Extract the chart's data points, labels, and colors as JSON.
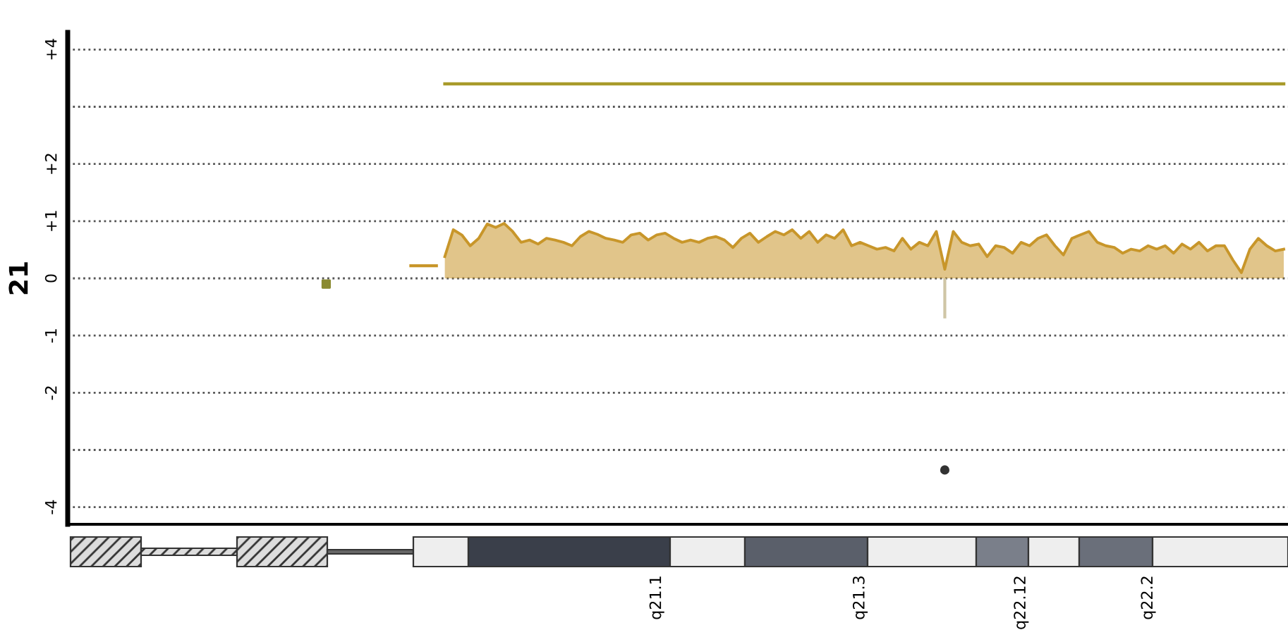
{
  "chart_data": {
    "type": "line",
    "ylabel": "21",
    "categories": [
      null,
      null,
      null,
      null,
      null,
      null,
      null,
      null,
      null,
      null,
      null,
      null,
      null,
      null,
      null,
      null,
      null,
      null,
      null,
      null,
      null,
      null,
      null,
      null,
      null,
      null,
      null,
      null,
      null,
      null,
      null,
      null,
      null,
      null,
      null,
      null,
      null,
      null,
      null,
      null,
      null,
      null,
      null,
      null,
      null,
      null,
      null,
      null,
      null,
      null,
      null,
      null,
      null,
      null,
      null,
      null,
      null,
      null,
      null,
      null,
      null,
      null,
      null,
      null,
      null,
      null,
      null,
      null,
      null,
      "q21.1",
      null,
      null,
      null,
      null,
      null,
      null,
      null,
      null,
      null,
      null,
      null,
      null,
      null,
      null,
      null,
      null,
      null,
      null,
      null,
      null,
      null,
      null,
      null,
      "q21.3",
      null,
      null,
      null,
      null,
      null,
      null,
      null,
      null,
      null,
      null,
      null,
      null,
      null,
      null,
      null,
      null,
      null,
      null,
      "q22.12",
      null,
      null,
      null,
      null,
      null,
      null,
      null,
      null,
      null,
      null,
      null,
      null,
      null,
      null,
      "q22.2",
      null,
      null,
      null,
      null,
      null,
      null,
      null,
      null,
      null,
      null,
      null,
      null,
      null,
      null,
      null,
      null
    ],
    "series": [
      {
        "color": "#c8962a",
        "values": [
          null,
          null,
          null,
          null,
          null,
          null,
          null,
          null,
          null,
          null,
          null,
          null,
          null,
          null,
          null,
          null,
          null,
          null,
          null,
          null,
          null,
          null,
          null,
          null,
          null,
          null,
          null,
          null,
          null,
          null,
          null,
          null,
          null,
          null,
          null,
          null,
          null,
          null,
          null,
          null,
          0.22,
          0.22,
          0.22,
          0.22,
          null,
          null,
          null,
          null,
          null,
          null,
          null,
          null,
          null,
          null,
          null,
          null,
          null,
          null,
          null,
          null,
          null,
          null,
          null,
          null,
          null,
          null,
          null,
          null,
          null,
          null,
          null,
          null,
          null,
          null,
          null,
          null,
          null,
          null,
          null,
          null,
          null,
          null,
          null,
          null,
          null,
          null,
          null,
          null,
          null,
          null,
          null,
          null,
          null,
          null,
          null,
          null,
          null,
          null,
          null,
          null,
          null,
          null,
          null,
          null,
          null,
          null,
          null,
          null,
          null,
          null,
          null,
          null,
          null,
          null,
          null,
          null,
          null,
          null,
          null,
          null,
          null,
          null,
          null,
          null,
          null,
          null,
          null,
          null,
          null,
          null,
          null,
          null,
          null,
          null,
          null,
          null,
          null,
          null,
          null,
          null,
          null,
          null,
          null,
          null
        ]
      },
      {
        "type": "area",
        "color": "#c8962a",
        "values": [
          null,
          null,
          null,
          null,
          null,
          null,
          null,
          null,
          null,
          null,
          null,
          null,
          null,
          null,
          null,
          null,
          null,
          null,
          null,
          null,
          null,
          null,
          null,
          null,
          null,
          null,
          null,
          null,
          null,
          null,
          null,
          null,
          null,
          null,
          null,
          null,
          null,
          null,
          null,
          null,
          null,
          null,
          null,
          null,
          0.38,
          0.85,
          0.76,
          0.57,
          0.7,
          0.95,
          0.89,
          0.96,
          0.82,
          0.63,
          0.67,
          0.6,
          0.7,
          0.67,
          0.63,
          0.57,
          0.73,
          0.82,
          0.77,
          0.7,
          0.67,
          0.63,
          0.76,
          0.79,
          0.67,
          0.76,
          0.79,
          0.7,
          0.63,
          0.67,
          0.63,
          0.7,
          0.73,
          0.67,
          0.54,
          0.7,
          0.79,
          0.63,
          0.73,
          0.82,
          0.76,
          0.85,
          0.7,
          0.82,
          0.63,
          0.76,
          0.7,
          0.85,
          0.57,
          0.63,
          0.57,
          0.51,
          0.54,
          0.48,
          0.7,
          0.51,
          0.63,
          0.57,
          0.82,
          0.16,
          0.82,
          0.63,
          0.57,
          0.6,
          0.38,
          0.57,
          0.54,
          0.44,
          0.63,
          0.57,
          0.7,
          0.76,
          0.57,
          0.41,
          0.7,
          0.76,
          0.82,
          0.63,
          0.57,
          0.54,
          0.44,
          0.51,
          0.48,
          0.57,
          0.51,
          0.57,
          0.44,
          0.6,
          0.51,
          0.63,
          0.48,
          0.57,
          0.57,
          0.32,
          0.1,
          0.51,
          0.7,
          0.57,
          0.48,
          0.51
        ]
      },
      {
        "type": "line",
        "color": "#a89a2a",
        "values": [
          null,
          null,
          null,
          null,
          null,
          null,
          null,
          null,
          null,
          null,
          null,
          null,
          null,
          null,
          null,
          null,
          null,
          null,
          null,
          null,
          null,
          null,
          null,
          null,
          null,
          null,
          null,
          null,
          null,
          null,
          null,
          null,
          null,
          null,
          null,
          null,
          null,
          null,
          null,
          null,
          null,
          null,
          null,
          null,
          3.4,
          3.4,
          3.4,
          3.4,
          3.4,
          3.4,
          3.4,
          3.4,
          3.4,
          3.4,
          3.4,
          3.4,
          3.4,
          3.4,
          3.4,
          3.4,
          3.4,
          3.4,
          3.4,
          3.4,
          3.4,
          3.4,
          3.4,
          3.4,
          3.4,
          3.4,
          3.4,
          3.4,
          3.4,
          3.4,
          3.4,
          3.4,
          3.4,
          3.4,
          3.4,
          3.4,
          3.4,
          3.4,
          3.4,
          3.4,
          3.4,
          3.4,
          3.4,
          3.4,
          3.4,
          3.4,
          3.4,
          3.4,
          3.4,
          3.4,
          3.4,
          3.4,
          3.4,
          3.4,
          3.4,
          3.4,
          3.4,
          3.4,
          3.4,
          3.4,
          3.4,
          3.4,
          3.4,
          3.4,
          3.4,
          3.4,
          3.4,
          3.4,
          3.4,
          3.4,
          3.4,
          3.4,
          3.4,
          3.4,
          3.4,
          3.4,
          3.4,
          3.4,
          3.4,
          3.4,
          3.4,
          3.4,
          3.4,
          3.4,
          3.4,
          3.4,
          3.4,
          3.4,
          3.4,
          3.4,
          3.4,
          3.4,
          3.4,
          3.4,
          3.4,
          3.4,
          3.4,
          3.4,
          3.4,
          3.4
        ]
      },
      {
        "type": "scatter",
        "color": "#8a8a30",
        "marker": "square",
        "values": [
          null,
          null,
          null,
          null,
          null,
          null,
          null,
          null,
          null,
          null,
          null,
          null,
          null,
          null,
          null,
          null,
          null,
          null,
          null,
          null,
          null,
          null,
          null,
          null,
          null,
          null,
          null,
          null,
          null,
          null,
          -0.1,
          null,
          null,
          null,
          null,
          null,
          null,
          null,
          null,
          null,
          null,
          null,
          null,
          null,
          null,
          null,
          null,
          null,
          null,
          null,
          null,
          null,
          null,
          null,
          null,
          null,
          null,
          null,
          null,
          null,
          null,
          null,
          null,
          null,
          null,
          null,
          null,
          null,
          null,
          null,
          null,
          null,
          null,
          null,
          null,
          null,
          null,
          null,
          null,
          null,
          null,
          null,
          null,
          null,
          null,
          null,
          null,
          null,
          null,
          null,
          null,
          null,
          null,
          null,
          null,
          null,
          null,
          null,
          null,
          null,
          null,
          null,
          null,
          null,
          null,
          null,
          null,
          null,
          null,
          null,
          null,
          null,
          null,
          null,
          null,
          null,
          null,
          null,
          null,
          null,
          null,
          null,
          null,
          null,
          null,
          null,
          null,
          null,
          null,
          null,
          null,
          null,
          null,
          null,
          null,
          null,
          null,
          null,
          null,
          null,
          null,
          null,
          null,
          null
        ]
      },
      {
        "type": "bar",
        "color": "#cfc6a6",
        "values": [
          null,
          null,
          null,
          null,
          null,
          null,
          null,
          null,
          null,
          null,
          null,
          null,
          null,
          null,
          null,
          null,
          null,
          null,
          null,
          null,
          null,
          null,
          null,
          null,
          null,
          null,
          null,
          null,
          null,
          null,
          null,
          null,
          null,
          null,
          null,
          null,
          null,
          null,
          null,
          null,
          null,
          null,
          null,
          null,
          null,
          null,
          null,
          null,
          null,
          null,
          null,
          null,
          null,
          null,
          null,
          null,
          null,
          null,
          null,
          null,
          null,
          null,
          null,
          null,
          null,
          null,
          null,
          null,
          null,
          null,
          null,
          null,
          null,
          null,
          null,
          null,
          null,
          null,
          null,
          null,
          null,
          null,
          null,
          null,
          null,
          null,
          null,
          null,
          null,
          null,
          null,
          null,
          null,
          null,
          null,
          null,
          null,
          null,
          null,
          null,
          null,
          null,
          null,
          -0.7,
          null,
          null,
          null,
          null,
          null,
          null,
          null,
          null,
          null,
          null,
          null,
          null,
          null,
          null,
          null,
          null,
          null,
          null,
          null,
          null,
          null,
          null,
          null,
          null,
          null,
          null,
          null,
          null,
          null,
          null,
          null,
          null,
          null,
          null,
          null,
          null,
          null,
          null,
          null,
          null
        ]
      },
      {
        "type": "scatter",
        "color": "#333333",
        "marker": "circle",
        "values": [
          null,
          null,
          null,
          null,
          null,
          null,
          null,
          null,
          null,
          null,
          null,
          null,
          null,
          null,
          null,
          null,
          null,
          null,
          null,
          null,
          null,
          null,
          null,
          null,
          null,
          null,
          null,
          null,
          null,
          null,
          null,
          null,
          null,
          null,
          null,
          null,
          null,
          null,
          null,
          null,
          null,
          null,
          null,
          null,
          null,
          null,
          null,
          null,
          null,
          null,
          null,
          null,
          null,
          null,
          null,
          null,
          null,
          null,
          null,
          null,
          null,
          null,
          null,
          null,
          null,
          null,
          null,
          null,
          null,
          null,
          null,
          null,
          null,
          null,
          null,
          null,
          null,
          null,
          null,
          null,
          null,
          null,
          null,
          null,
          null,
          null,
          null,
          null,
          null,
          null,
          null,
          null,
          null,
          null,
          null,
          null,
          null,
          null,
          null,
          null,
          null,
          null,
          null,
          -3.35,
          null,
          null,
          null,
          null,
          null,
          null,
          null,
          null,
          null,
          null,
          null,
          null,
          null,
          null,
          null,
          null,
          null,
          null,
          null,
          null,
          null,
          null,
          null,
          null,
          null,
          null,
          null,
          null,
          null,
          null,
          null,
          null,
          null,
          null,
          null,
          null,
          null,
          null,
          null,
          null
        ]
      }
    ],
    "ylim": [
      -4.3,
      4.3
    ],
    "yticks": [
      {
        "value": 4,
        "label": "+4"
      },
      {
        "value": 3,
        "label": null
      },
      {
        "value": 2,
        "label": "+2"
      },
      {
        "value": 1,
        "label": "+1"
      },
      0,
      -1,
      -2,
      {
        "value": -3,
        "label": null
      },
      -4
    ],
    "grid": "y",
    "marker": "none",
    "line_style": "solid",
    "legend": false
  }
}
